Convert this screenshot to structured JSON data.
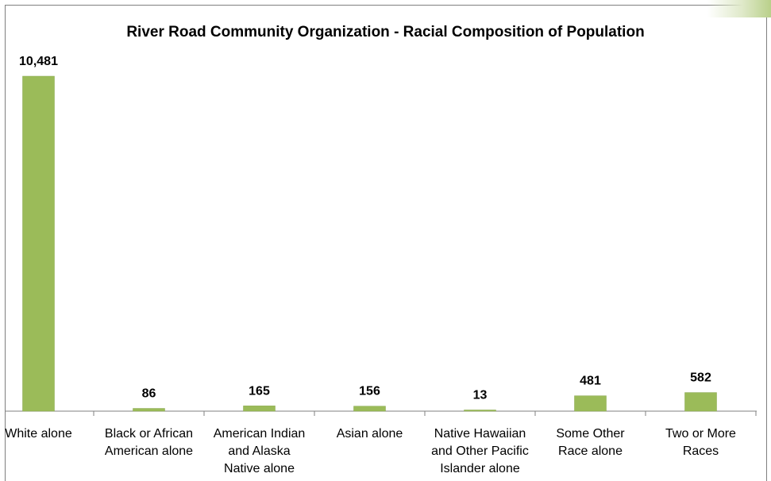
{
  "chart_data": {
    "type": "bar",
    "title": "River Road Community Organization - Racial Composition of Population",
    "xlabel": "",
    "ylabel": "",
    "categories": [
      [
        "White alone"
      ],
      [
        "Black or African",
        "American alone"
      ],
      [
        "American Indian",
        "and Alaska",
        "Native alone"
      ],
      [
        "Asian alone"
      ],
      [
        "Native Hawaiian",
        "and Other Pacific",
        "Islander alone"
      ],
      [
        "Some Other",
        "Race alone"
      ],
      [
        "Two or More",
        "Races"
      ]
    ],
    "values": [
      10481,
      86,
      165,
      156,
      13,
      481,
      582
    ],
    "value_labels": [
      "10,481",
      "86",
      "165",
      "156",
      "13",
      "481",
      "582"
    ],
    "ylim": [
      0,
      10481
    ],
    "grid": false,
    "legend": "none",
    "colors": {
      "bar": "#9bbb59",
      "bar_edge": "#86a64a",
      "axis": "#808080"
    }
  }
}
